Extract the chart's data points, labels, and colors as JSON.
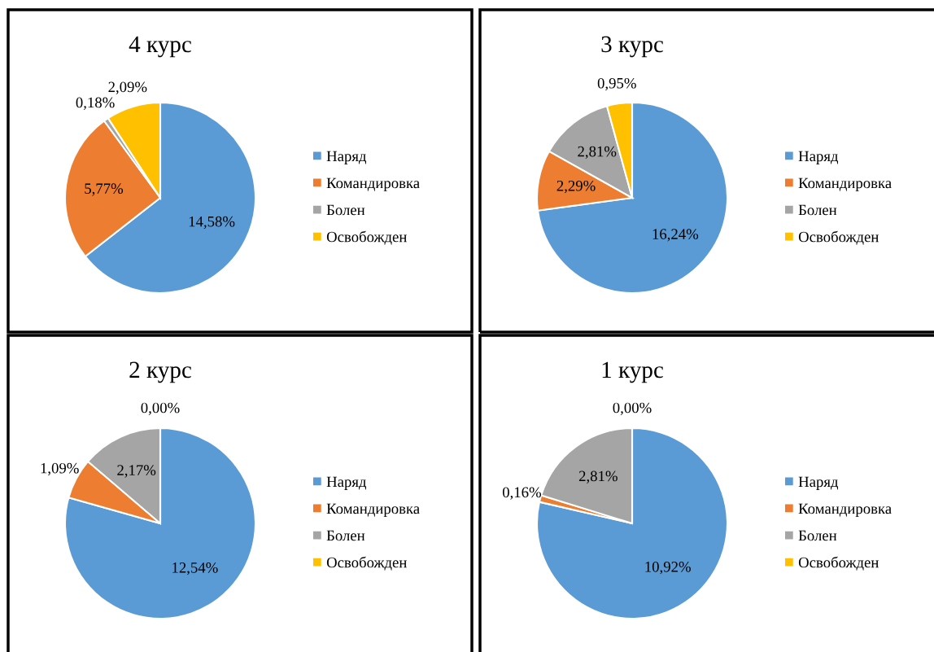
{
  "chart_data": [
    {
      "type": "pie",
      "title": "4 курс",
      "categories": [
        "Наряд",
        "Командировка",
        "Болен",
        "Освобожден"
      ],
      "values": [
        14.58,
        5.77,
        0.18,
        2.09
      ],
      "colors": [
        "#5b9bd5",
        "#ed7d31",
        "#a5a5a5",
        "#ffc000"
      ],
      "value_labels": [
        "14,58%",
        "5,77%",
        "0,18%",
        "2,09%"
      ],
      "legend": "right"
    },
    {
      "type": "pie",
      "title": "3 курс",
      "categories": [
        "Наряд",
        "Командировка",
        "Болен",
        "Освобожден"
      ],
      "values": [
        16.24,
        2.29,
        2.81,
        0.95
      ],
      "colors": [
        "#5b9bd5",
        "#ed7d31",
        "#a5a5a5",
        "#ffc000"
      ],
      "value_labels": [
        "16,24%",
        "2,29%",
        "2,81%",
        "0,95%"
      ],
      "legend": "right"
    },
    {
      "type": "pie",
      "title": "2 курс",
      "categories": [
        "Наряд",
        "Командировка",
        "Болен",
        "Освобожден"
      ],
      "values": [
        12.54,
        1.09,
        2.17,
        0.0
      ],
      "colors": [
        "#5b9bd5",
        "#ed7d31",
        "#a5a5a5",
        "#ffc000"
      ],
      "value_labels": [
        "12,54%",
        "1,09%",
        "2,17%",
        "0,00%"
      ],
      "legend": "right"
    },
    {
      "type": "pie",
      "title": "1 курс",
      "categories": [
        "Наряд",
        "Командировка",
        "Болен",
        "Освобожден"
      ],
      "values": [
        10.92,
        0.16,
        2.81,
        0.0
      ],
      "colors": [
        "#5b9bd5",
        "#ed7d31",
        "#a5a5a5",
        "#ffc000"
      ],
      "value_labels": [
        "10,92%",
        "0,16%",
        "2,81%",
        "0,00%"
      ],
      "legend": "right"
    }
  ]
}
